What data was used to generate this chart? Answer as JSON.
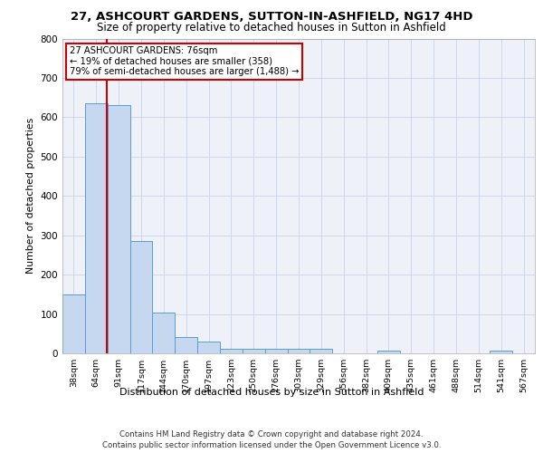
{
  "title_line1": "27, ASHCOURT GARDENS, SUTTON-IN-ASHFIELD, NG17 4HD",
  "title_line2": "Size of property relative to detached houses in Sutton in Ashfield",
  "xlabel": "Distribution of detached houses by size in Sutton in Ashfield",
  "ylabel": "Number of detached properties",
  "bar_labels": [
    "38sqm",
    "64sqm",
    "91sqm",
    "117sqm",
    "144sqm",
    "170sqm",
    "197sqm",
    "223sqm",
    "250sqm",
    "276sqm",
    "303sqm",
    "329sqm",
    "356sqm",
    "382sqm",
    "409sqm",
    "435sqm",
    "461sqm",
    "488sqm",
    "514sqm",
    "541sqm",
    "567sqm"
  ],
  "bar_values": [
    150,
    635,
    630,
    285,
    103,
    42,
    29,
    11,
    11,
    11,
    11,
    11,
    0,
    0,
    8,
    0,
    0,
    0,
    0,
    8,
    0
  ],
  "bar_color": "#c5d8f0",
  "bar_edge_color": "#5b9bd5",
  "annotation_text_line1": "27 ASHCOURT GARDENS: 76sqm",
  "annotation_text_line2": "← 19% of detached houses are smaller (358)",
  "annotation_text_line3": "79% of semi-detached houses are larger (1,488) →",
  "annotation_box_color": "#ffffff",
  "annotation_box_edge": "#cc0000",
  "vline_color": "#cc0000",
  "grid_color": "#c8d4e8",
  "background_color": "#eef2f8",
  "footer_line1": "Contains HM Land Registry data © Crown copyright and database right 2024.",
  "footer_line2": "Contains public sector information licensed under the Open Government Licence v3.0.",
  "ylim": [
    0,
    800
  ],
  "yticks": [
    0,
    100,
    200,
    300,
    400,
    500,
    600,
    700,
    800
  ]
}
